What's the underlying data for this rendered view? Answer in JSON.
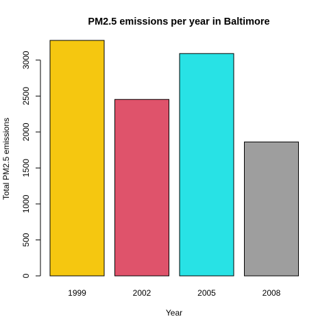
{
  "chart_data": {
    "type": "bar",
    "title": "PM2.5 emissions per year in Baltimore",
    "xlabel": "Year",
    "ylabel": "Total PM2.5 emissions",
    "categories": [
      "1999",
      "2002",
      "2005",
      "2008"
    ],
    "values": [
      3274,
      2453,
      3091,
      1862
    ],
    "colors": [
      "#f5c710",
      "#df536b",
      "#28e2e5",
      "#9e9e9e"
    ],
    "ylim": [
      0,
      3274
    ],
    "yticks": [
      0,
      500,
      1000,
      1500,
      2000,
      2500,
      3000
    ],
    "grid": false,
    "legend": "none"
  }
}
